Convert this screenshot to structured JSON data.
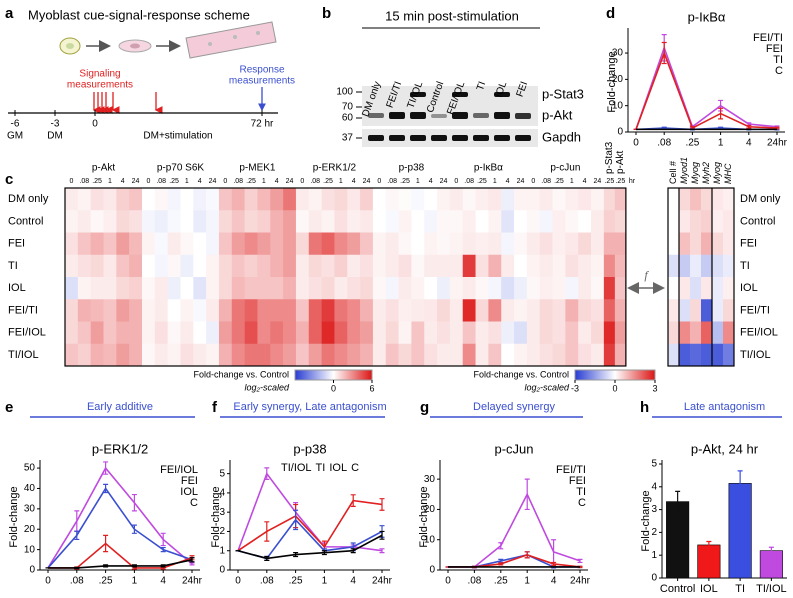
{
  "panels": {
    "a": {
      "letter": "a",
      "title": "Myoblast cue-signal-response scheme",
      "signaling": [
        "Signaling",
        "measurements"
      ],
      "response": [
        "Response",
        "measurements"
      ],
      "timeline": [
        "-6",
        "-3",
        "0",
        "72 hr"
      ],
      "phases": [
        "GM",
        "DM",
        "DM+stimulation"
      ]
    },
    "b": {
      "letter": "b",
      "title": "15 min post-stimulation",
      "lanes": [
        "DM only",
        "FEI/TI",
        "TI/IOL",
        "Control",
        "FEI/IOL",
        "TI",
        "IOL",
        "FEI"
      ],
      "markers": [
        "100",
        "70",
        "60",
        "37"
      ],
      "proteins": [
        "p-Stat3",
        "p-Akt",
        "Gapdh"
      ]
    }
  },
  "chart_data": [
    {
      "type": "heatmap",
      "panel": "c",
      "rows": [
        "DM only",
        "Control",
        "FEI",
        "TI",
        "IOL",
        "FEI/TI",
        "FEI/IOL",
        "TI/IOL"
      ],
      "groups": [
        {
          "name": "p-Akt",
          "columns": [
            "0",
            ".08",
            ".25",
            "1",
            "4",
            "24"
          ]
        },
        {
          "name": "p-p70 S6K",
          "columns": [
            "0",
            ".08",
            ".25",
            "1",
            "4",
            "24"
          ]
        },
        {
          "name": "p-MEK1",
          "columns": [
            "0",
            ".08",
            ".25",
            "1",
            "4",
            "24"
          ]
        },
        {
          "name": "p-ERK1/2",
          "columns": [
            "0",
            ".08",
            ".25",
            "1",
            "4",
            "24"
          ]
        },
        {
          "name": "p-p38",
          "columns": [
            "0",
            ".08",
            ".25",
            "1",
            "4",
            "24"
          ]
        },
        {
          "name": "p-IκBα",
          "columns": [
            "0",
            ".08",
            ".25",
            "1",
            "4",
            "24"
          ]
        },
        {
          "name": "p-cJun",
          "columns": [
            "0",
            ".08",
            ".25",
            "1",
            "4",
            "24"
          ]
        },
        {
          "name": "p-Stat3",
          "columns": [
            ".25"
          ]
        },
        {
          "name": "p-Akt",
          "columns": [
            ".25"
          ]
        }
      ],
      "time_unit": "hr",
      "values": [
        [
          0.5,
          0.3,
          0.8,
          0.6,
          1.2,
          1.5,
          0,
          0.2,
          -0.3,
          0,
          -0.4,
          -0.2,
          1.5,
          2,
          1.2,
          1.8,
          2.5,
          3.5,
          0.5,
          0.3,
          0.8,
          1,
          0.6,
          1.2,
          0,
          0.2,
          0.1,
          -0.2,
          0,
          0.3,
          0.5,
          0.2,
          0.4,
          0.6,
          -0.5,
          0.3,
          0.3,
          0.5,
          0.2,
          0.4,
          0.6,
          0.3,
          1,
          1.5
        ],
        [
          0.3,
          0.5,
          0.2,
          0.4,
          1,
          0.8,
          -0.3,
          -0.5,
          -0.2,
          0,
          -0.6,
          -0.3,
          1,
          1.5,
          1,
          1.2,
          2,
          2.5,
          0.2,
          0.5,
          0.3,
          0.8,
          0.4,
          0.6,
          0,
          -0.2,
          0.3,
          0,
          -0.3,
          0.2,
          0.2,
          0.4,
          0,
          0.3,
          -0.8,
          0,
          0.2,
          -0.3,
          0.4,
          0.2,
          0,
          0.5,
          1.2,
          1
        ],
        [
          0.8,
          1.5,
          2,
          1.5,
          2.5,
          1.8,
          0.3,
          -0.2,
          0.5,
          0.2,
          0,
          -0.3,
          1.5,
          2.5,
          3,
          2.5,
          2,
          2.5,
          1,
          3.5,
          4,
          3,
          2.5,
          1.5,
          0.3,
          0.5,
          0.2,
          0,
          0.3,
          0.2,
          0.3,
          0.5,
          0.4,
          0.5,
          -0.3,
          0.2,
          0.5,
          0.8,
          0.4,
          0.6,
          1,
          0.5,
          2,
          2
        ],
        [
          0.5,
          0.8,
          1,
          0.6,
          1.5,
          2,
          0,
          -0.3,
          0.2,
          -0.5,
          0,
          0.3,
          1,
          1.5,
          1.2,
          1.5,
          2,
          2.5,
          0.5,
          1,
          0.8,
          1.2,
          0.5,
          0.8,
          0.3,
          0.5,
          0.8,
          0.2,
          0.5,
          0.5,
          0.5,
          5,
          0.8,
          2,
          0.5,
          0,
          0.3,
          0.5,
          0.3,
          0.8,
          0.5,
          0.3,
          3,
          1.8
        ],
        [
          -1,
          0.3,
          0.5,
          0.5,
          1,
          1.2,
          0.2,
          0.5,
          -0.5,
          0,
          -0.8,
          0.3,
          1,
          1.8,
          1.5,
          1.5,
          1.5,
          2,
          0.5,
          0.8,
          1,
          0.5,
          0.8,
          1,
          0.2,
          -0.3,
          0.5,
          0.3,
          0,
          -0.5,
          0.3,
          0.5,
          0.2,
          -0.3,
          -1,
          -0.5,
          0.2,
          0.4,
          0.3,
          -0.3,
          0.5,
          0.2,
          5,
          1.5
        ],
        [
          1,
          2,
          1.8,
          1.5,
          2.5,
          2,
          0.3,
          0.5,
          0,
          0.3,
          -0.2,
          0.5,
          2,
          3.5,
          4,
          3,
          3,
          3,
          1.5,
          4,
          5,
          3.5,
          3,
          2,
          0.5,
          0.8,
          0.4,
          0.5,
          0.6,
          1,
          0.5,
          5.5,
          1,
          3,
          0.5,
          0.3,
          0.5,
          1,
          0.8,
          2,
          1,
          0.8,
          4,
          2
        ],
        [
          1,
          1.5,
          2.5,
          1.5,
          2,
          2,
          0.3,
          0.8,
          0.2,
          0.5,
          0,
          -0.5,
          2.5,
          3.5,
          4.5,
          3,
          3.5,
          3,
          2,
          4,
          5.5,
          4,
          3,
          2.5,
          0.5,
          1,
          0.3,
          1.5,
          0.5,
          0.8,
          0.5,
          1.5,
          0.5,
          0.8,
          -0.5,
          -1,
          0.5,
          1,
          0.8,
          1.5,
          0.5,
          1,
          5.5,
          2.5
        ],
        [
          1.5,
          1.2,
          2,
          1.8,
          2.5,
          2,
          0.2,
          0.5,
          0.3,
          0.8,
          0.5,
          0.3,
          2,
          3,
          3.5,
          3.5,
          3,
          2.5,
          1.5,
          2.5,
          3.5,
          3,
          2.5,
          2,
          0.5,
          1.5,
          1,
          1.5,
          0.8,
          0.5,
          0.5,
          3,
          0.5,
          1.5,
          0,
          0.3,
          0.5,
          0.8,
          1,
          1.5,
          0.8,
          0.5,
          5,
          2
        ]
      ],
      "clim": [
        -6,
        6
      ],
      "cticks": [
        0,
        6
      ],
      "colorbar_label": "Fold-change vs. Control",
      "colorbar_sublabel": "log₂-scaled"
    },
    {
      "type": "heatmap",
      "rows": [
        "DM only",
        "Control",
        "FEI",
        "TI",
        "IOL",
        "FEI/TI",
        "FEI/IOL",
        "TI/IOL"
      ],
      "columns": [
        "Cell #",
        "Myod1",
        "Myog",
        "Myh2",
        "Myog",
        "MHC"
      ],
      "values": [
        [
          0,
          0.5,
          0.8,
          0.5,
          0.3,
          0.2
        ],
        [
          0,
          0.3,
          0.5,
          0.6,
          0.2,
          0.3
        ],
        [
          0,
          0.8,
          0.5,
          1,
          0.5,
          0.3
        ],
        [
          -0.5,
          -0.8,
          -0.3,
          -0.8,
          -0.5,
          -0.3
        ],
        [
          0,
          0.3,
          -0.5,
          0.3,
          -0.3,
          0.2
        ],
        [
          0.3,
          -0.5,
          0.5,
          -2.5,
          -0.3,
          0.5
        ],
        [
          0.5,
          1.5,
          1,
          2,
          -1,
          1.5
        ],
        [
          -0.5,
          -2.5,
          -2.3,
          -2.5,
          -2.5,
          -2
        ]
      ],
      "clim": [
        -3,
        3
      ],
      "cticks": [
        -3,
        0,
        3
      ],
      "colorbar_label": "Fold-change vs. Control",
      "colorbar_sublabel": "log₂-scaled",
      "link_label": "f"
    },
    {
      "type": "line",
      "panel": "d",
      "title": "p-IκBα",
      "ylabel": "Fold-change",
      "legend": "upper right",
      "categories": [
        "0",
        ".08",
        ".25",
        "1",
        "4",
        "24hr"
      ],
      "ylim": [
        0,
        38
      ],
      "yticks": [
        0,
        10,
        20,
        30
      ],
      "series": [
        {
          "name": "FEI/TI",
          "color": "#c04ae0",
          "values": [
            1,
            32,
            2,
            10,
            3,
            2
          ],
          "errors": [
            0,
            5,
            0.5,
            2,
            0.5,
            0.3
          ]
        },
        {
          "name": "FEI",
          "color": "#3a4fd0",
          "values": [
            1,
            1.5,
            1,
            1.5,
            1,
            1
          ],
          "errors": [
            0,
            0.3,
            0.2,
            0.3,
            0.2,
            0.2
          ]
        },
        {
          "name": "TI",
          "color": "#e02020",
          "values": [
            1,
            30,
            1.5,
            7,
            2,
            1.5
          ],
          "errors": [
            0,
            4,
            0.5,
            2,
            0.5,
            0.3
          ]
        },
        {
          "name": "C",
          "color": "#000000",
          "values": [
            1,
            1,
            1,
            1,
            1,
            1
          ]
        }
      ]
    },
    {
      "type": "line",
      "panel": "e",
      "header": "Early additive",
      "title": "p-ERK1/2",
      "ylabel": "Fold-change",
      "legend": "upper right",
      "categories": [
        "0",
        ".08",
        ".25",
        "1",
        "4",
        "24hr"
      ],
      "ylim": [
        0,
        52
      ],
      "yticks": [
        0,
        10,
        20,
        30,
        40,
        50
      ],
      "series": [
        {
          "name": "FEI/IOL",
          "color": "#c04ae0",
          "values": [
            1,
            24,
            50,
            33,
            15,
            3
          ],
          "errors": [
            0,
            5,
            3,
            4,
            3,
            0.5
          ]
        },
        {
          "name": "FEI",
          "color": "#3a4fd0",
          "values": [
            1,
            17,
            40,
            20,
            10,
            5
          ],
          "errors": [
            0,
            2,
            2,
            2,
            1,
            1
          ]
        },
        {
          "name": "IOL",
          "color": "#e02020",
          "values": [
            1,
            1,
            13,
            1,
            1,
            6
          ],
          "errors": [
            0,
            0.5,
            4,
            0.5,
            0.5,
            1
          ]
        },
        {
          "name": "C",
          "color": "#000000",
          "values": [
            1,
            1,
            2,
            2,
            2,
            5
          ],
          "errors": [
            0,
            0.3,
            0.5,
            0.5,
            0.5,
            1
          ]
        }
      ]
    },
    {
      "type": "line",
      "panel": "f",
      "header": "Early synergy, Late antagonism",
      "title": "p-p38",
      "ylabel": "Fold-change",
      "legend": "upper center",
      "categories": [
        "0",
        ".08",
        ".25",
        "1",
        "4",
        "24hr"
      ],
      "ylim": [
        0,
        5.5
      ],
      "yticks": [
        0,
        1,
        2,
        3,
        4,
        5
      ],
      "series": [
        {
          "name": "TI/IOL",
          "color": "#c04ae0",
          "values": [
            1,
            5,
            3,
            1.2,
            1.2,
            1
          ],
          "errors": [
            0,
            0.3,
            0.5,
            0.2,
            0.1,
            0.1
          ]
        },
        {
          "name": "TI",
          "color": "#e02020",
          "values": [
            1,
            2,
            2.8,
            1.2,
            3.6,
            3.4
          ],
          "errors": [
            0,
            0.5,
            0.6,
            0.3,
            0.3,
            0.3
          ]
        },
        {
          "name": "IOL",
          "color": "#3a4fd0",
          "values": [
            1,
            0.6,
            2.6,
            1,
            1.2,
            2
          ],
          "errors": [
            0,
            0.1,
            0.5,
            0.1,
            0.2,
            0.3
          ]
        },
        {
          "name": "C",
          "color": "#000000",
          "values": [
            1,
            0.6,
            0.8,
            0.9,
            1,
            1.8
          ],
          "errors": [
            0,
            0.1,
            0.1,
            0.1,
            0.1,
            0.2
          ]
        }
      ]
    },
    {
      "type": "line",
      "panel": "g",
      "header": "Delayed synergy",
      "title": "p-cJun",
      "ylabel": "Fold-change",
      "legend": "upper right",
      "categories": [
        "0",
        ".08",
        ".25",
        "1",
        "4",
        "24hr"
      ],
      "ylim": [
        0,
        35
      ],
      "yticks": [
        0,
        10,
        20,
        30
      ],
      "series": [
        {
          "name": "FEI/TI",
          "color": "#c04ae0",
          "values": [
            1,
            1,
            8,
            25,
            6,
            3
          ],
          "errors": [
            0,
            0.3,
            1,
            5,
            4,
            0.5
          ]
        },
        {
          "name": "FEI",
          "color": "#3a4fd0",
          "values": [
            1,
            1,
            3,
            5,
            1,
            1
          ],
          "errors": [
            0,
            0.2,
            0.5,
            1,
            0.3,
            0.2
          ]
        },
        {
          "name": "TI",
          "color": "#e02020",
          "values": [
            1,
            1,
            2,
            5,
            2,
            1
          ],
          "errors": [
            0,
            0.2,
            0.3,
            1,
            0.5,
            0.2
          ]
        },
        {
          "name": "C",
          "color": "#000000",
          "values": [
            1,
            1,
            1,
            1,
            1,
            1
          ]
        }
      ]
    },
    {
      "type": "bar",
      "panel": "h",
      "header": "Late antagonism",
      "title": "p-Akt, 24 hr",
      "ylabel": "Fold-change",
      "categories": [
        "Control",
        "IOL",
        "TI",
        "TI/IOL"
      ],
      "values": [
        3.35,
        1.45,
        4.15,
        1.2
      ],
      "errors": [
        0.45,
        0.15,
        0.55,
        0.15
      ],
      "colors": [
        "#111111",
        "#f01818",
        "#3a4fe0",
        "#c04ae0"
      ],
      "ylim": [
        0,
        5
      ],
      "yticks": [
        0,
        1,
        2,
        3,
        4,
        5
      ]
    }
  ]
}
